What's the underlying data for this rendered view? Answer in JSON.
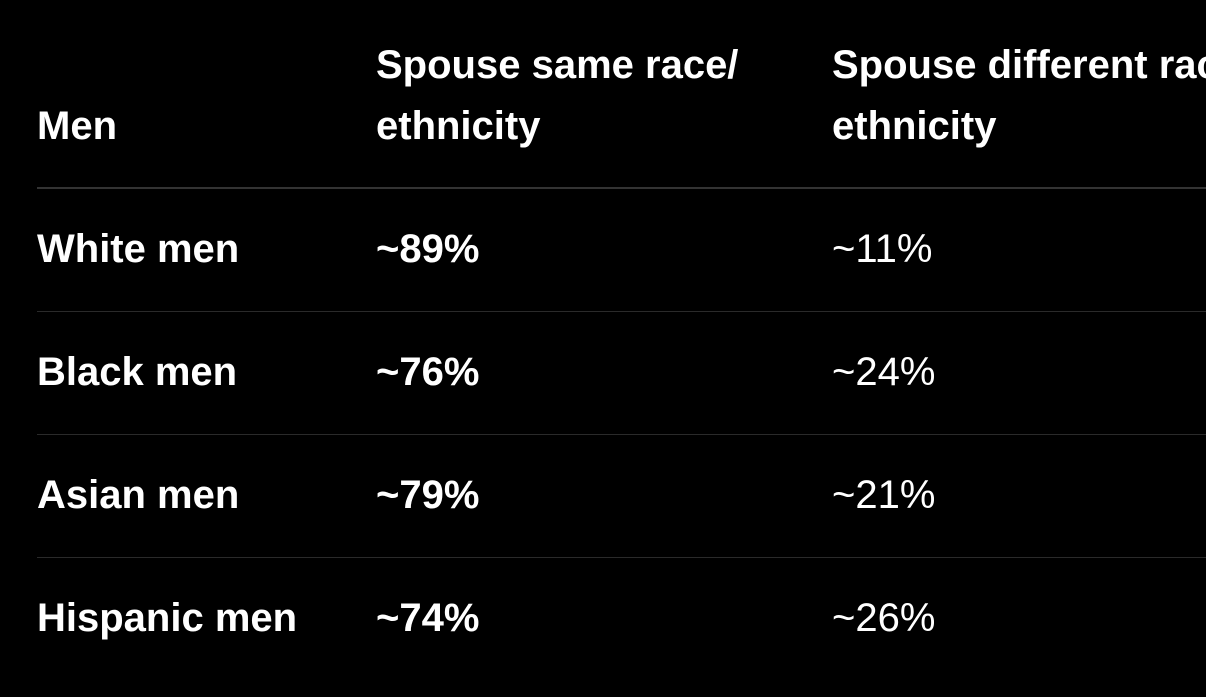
{
  "table": {
    "headers": {
      "group": "Men",
      "same_line1": "Spouse same race/",
      "same_line2": "ethnicity",
      "diff_line1": "Spouse different race/",
      "diff_line2": "ethnicity"
    },
    "rows": [
      {
        "group": "White men",
        "same": "~89%",
        "different": "~11%"
      },
      {
        "group": "Black men",
        "same": "~76%",
        "different": "~24%"
      },
      {
        "group": "Asian men",
        "same": "~79%",
        "different": "~21%"
      },
      {
        "group": "Hispanic men",
        "same": "~74%",
        "different": "~26%"
      }
    ]
  },
  "colors": {
    "background": "#000000",
    "text": "#ffffff",
    "divider": "#333333"
  }
}
